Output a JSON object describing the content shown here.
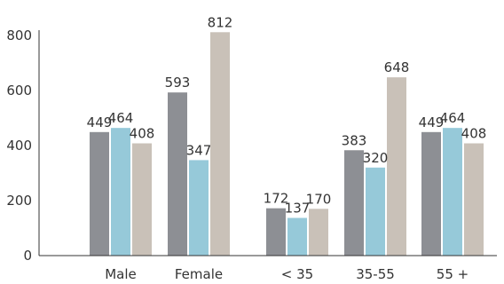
{
  "chart_data": {
    "type": "bar",
    "title": "",
    "xlabel": "",
    "ylabel": "",
    "categories": [
      "Male",
      "Female",
      "< 35",
      "35-55",
      "55 +"
    ],
    "series": [
      {
        "values": [
          449,
          593,
          172,
          383,
          449
        ],
        "color": "#8d8f94"
      },
      {
        "values": [
          464,
          347,
          137,
          320,
          464
        ],
        "color": "#96c9d9"
      },
      {
        "values": [
          408,
          812,
          170,
          648,
          408
        ],
        "color": "#c9c1b8"
      }
    ],
    "yticks": [
      0,
      200,
      400,
      600,
      800
    ],
    "ylim": [
      0,
      850
    ],
    "grid": false,
    "legend": "none"
  }
}
